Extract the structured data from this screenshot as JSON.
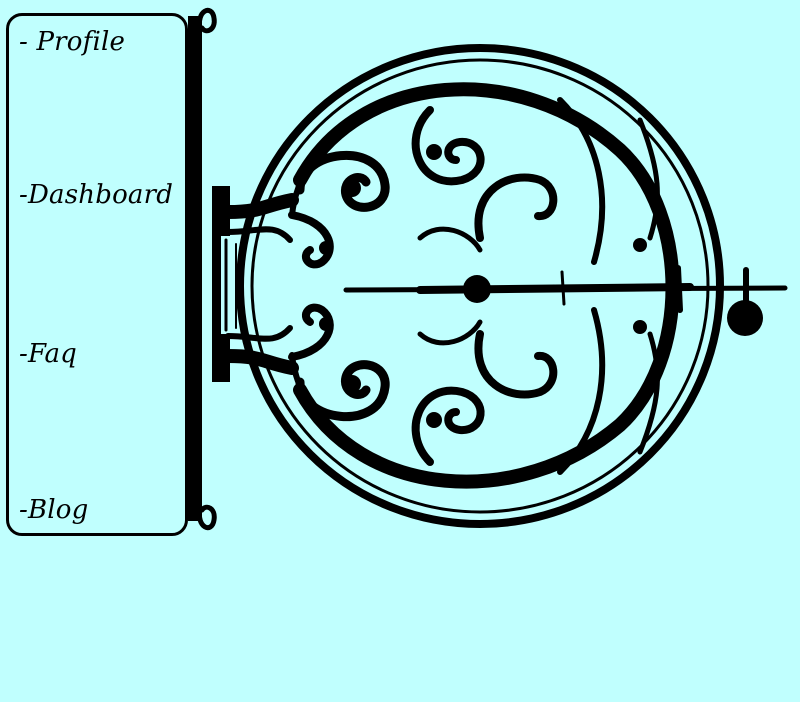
{
  "theme": {
    "background": "#c0fffe",
    "ink": "#000000"
  },
  "nav": {
    "items": [
      {
        "label": "- Profile"
      },
      {
        "label": "-Dashboard"
      },
      {
        "label": "-Faq"
      },
      {
        "label": "-Blog"
      }
    ]
  },
  "decor": {
    "icon": "ornamental-wrought-iron-sign-bracket-icon"
  }
}
